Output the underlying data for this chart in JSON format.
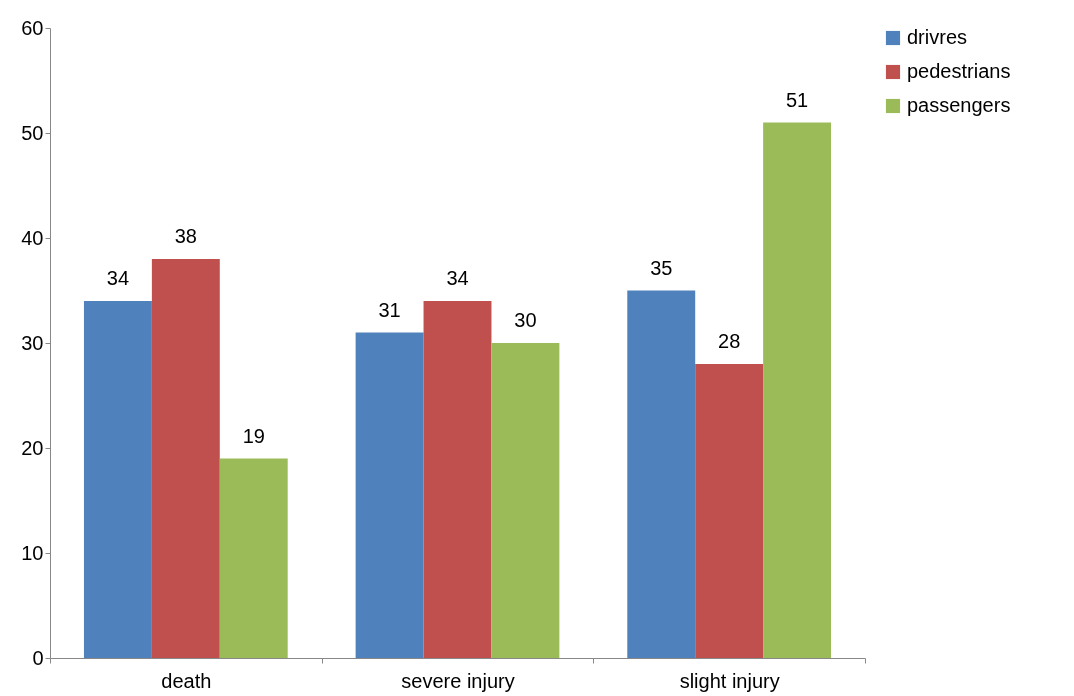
{
  "chart_data": {
    "type": "bar",
    "categories": [
      "death",
      "severe injury",
      "slight injury"
    ],
    "series": [
      {
        "name": "drivres",
        "color": "#4f81bd",
        "values": [
          34,
          31,
          35
        ]
      },
      {
        "name": "pedestrians",
        "color": "#c0504d",
        "values": [
          38,
          34,
          28
        ]
      },
      {
        "name": "passengers",
        "color": "#9bbb59",
        "values": [
          19,
          30,
          51
        ]
      }
    ],
    "ylim": [
      0,
      60
    ],
    "yticks": [
      0,
      10,
      20,
      30,
      40,
      50,
      60
    ],
    "grid": false,
    "legend": "right",
    "data_labels": true
  }
}
